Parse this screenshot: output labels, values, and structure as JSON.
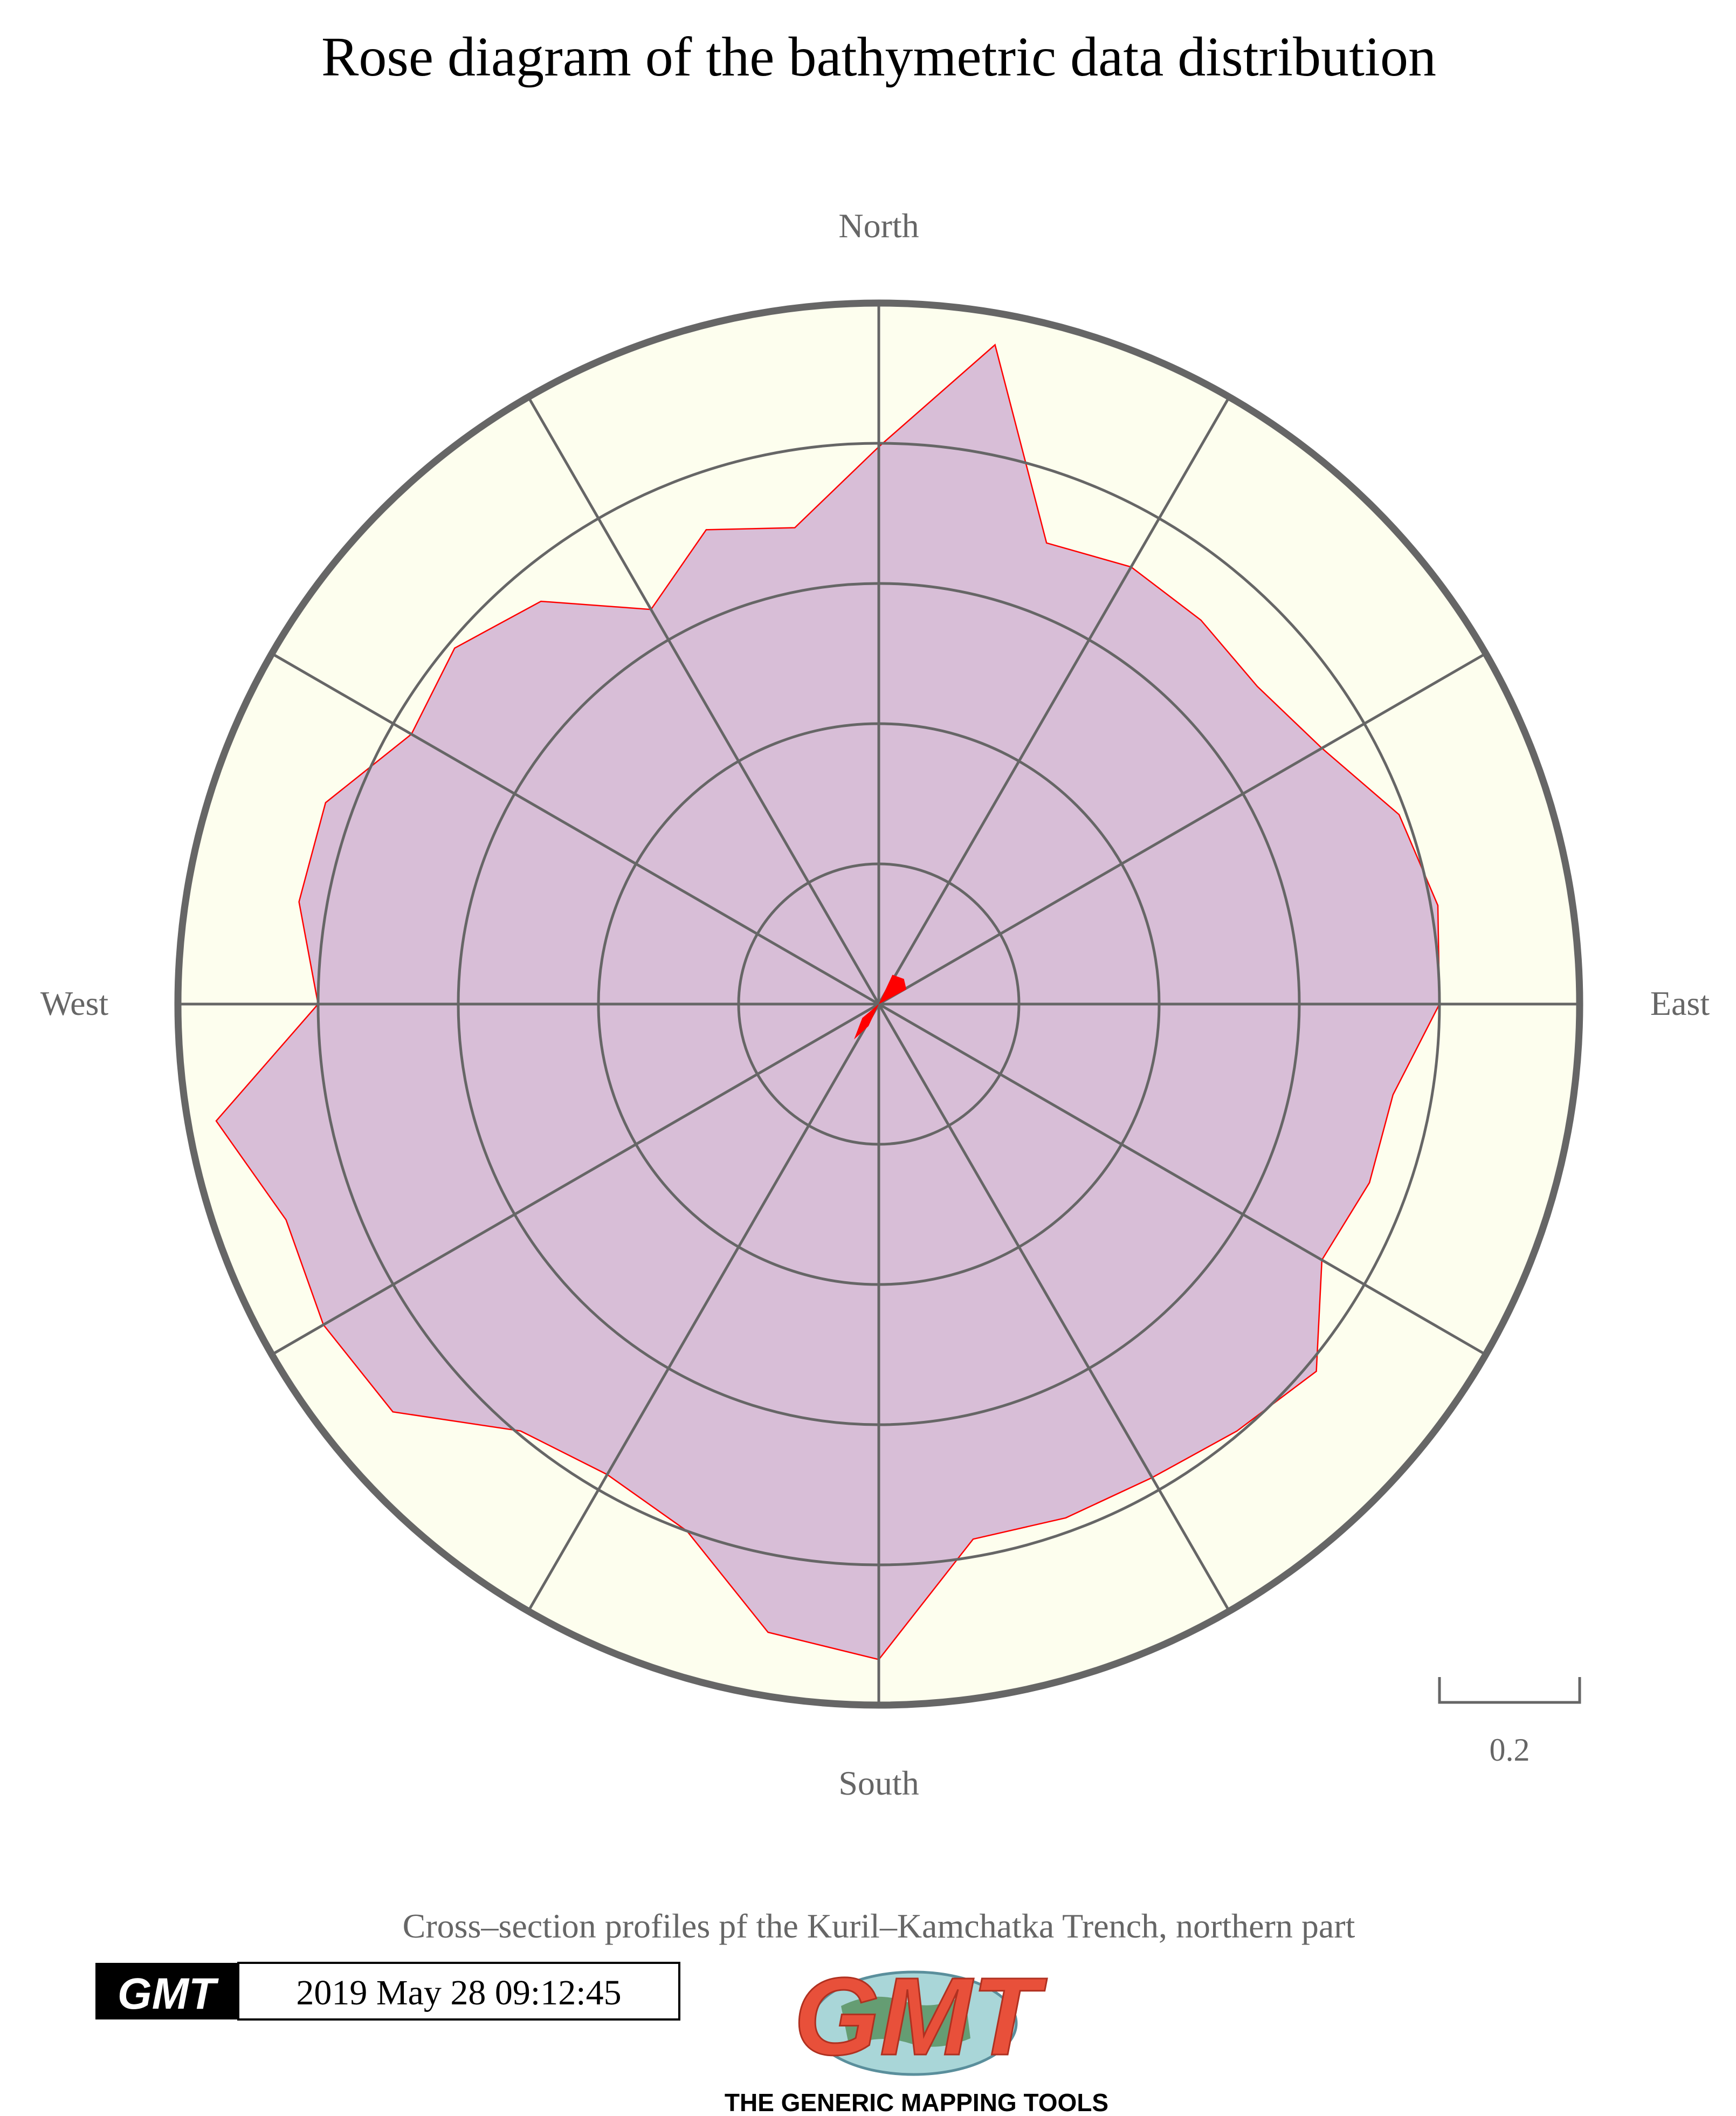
{
  "chart_data": {
    "type": "rose",
    "title": "Rose diagram of the bathymetric data distribution",
    "subtitle": "Cross–section profiles pf the Kuril–Kamchatka Trench, northern part",
    "direction_labels": {
      "north": "North",
      "east": "East",
      "south": "South",
      "west": "West"
    },
    "scale_bar_label": "0.2",
    "ring_step": 0.2,
    "max_radius": 1.0,
    "spoke_interval_deg": 30,
    "grid": true,
    "colors": {
      "rose_fill": "#D8BED7",
      "rose_outline": "#FF0000",
      "background_disc": "#FDFEEE",
      "grid_lines": "#666666",
      "frame": "#666666",
      "mean_direction_wedge": "#FF0000"
    },
    "series": [
      {
        "bin_width_deg": 10,
        "azimuths_deg": [
          0,
          10,
          20,
          30,
          40,
          50,
          60,
          70,
          80,
          90,
          100,
          110,
          120,
          130,
          140,
          150,
          160,
          170,
          180,
          190,
          200,
          210,
          220,
          230,
          240,
          250,
          260,
          270,
          280,
          290,
          300,
          310,
          320,
          330,
          340,
          350
        ],
        "values": [
          0.795,
          0.955,
          0.7,
          0.72,
          0.715,
          0.705,
          0.73,
          0.79,
          0.81,
          0.8,
          0.745,
          0.745,
          0.73,
          0.815,
          0.795,
          0.78,
          0.78,
          0.775,
          0.935,
          0.91,
          0.8,
          0.775,
          0.795,
          0.905,
          0.915,
          0.9,
          0.96,
          0.8,
          0.84,
          0.84,
          0.77,
          0.79,
          0.75,
          0.65,
          0.72,
          0.69
        ]
      }
    ]
  },
  "footer": {
    "timestamp": "2019 May 28 09:12:45",
    "badge_logo_text": "GMT",
    "logo_text": "GMT",
    "logo_caption": "THE GENERIC MAPPING TOOLS"
  }
}
